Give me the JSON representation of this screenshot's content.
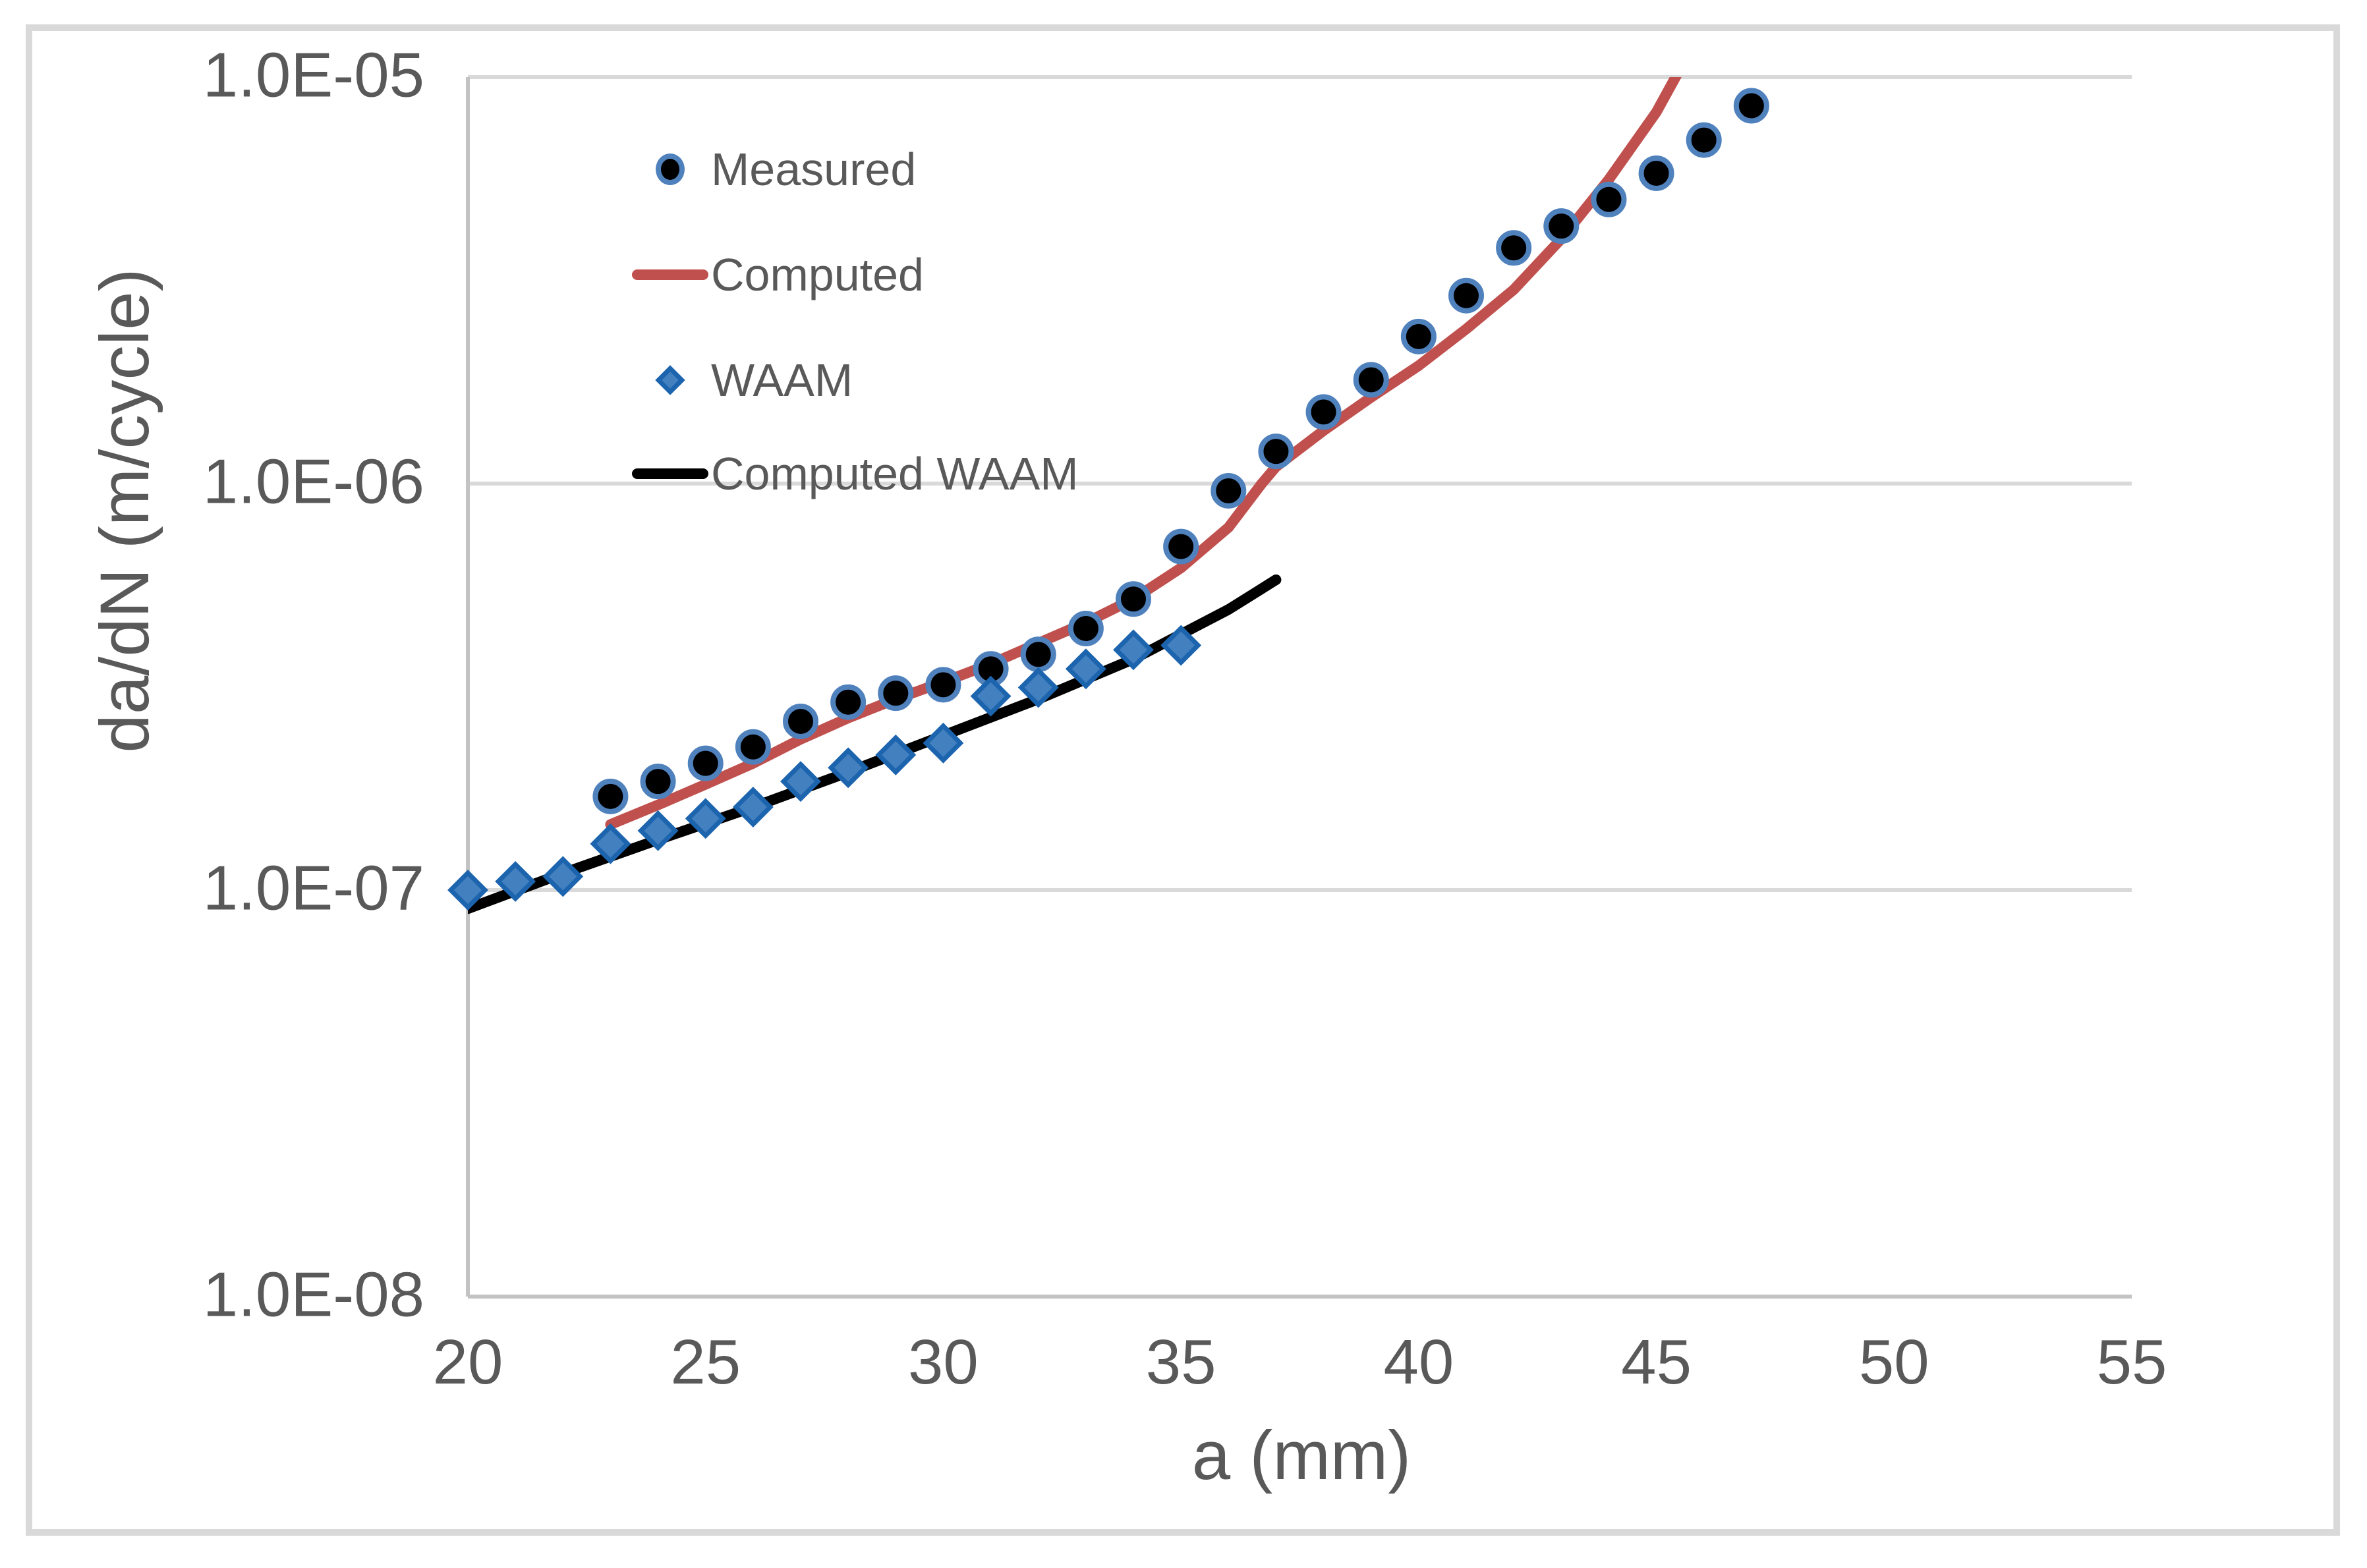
{
  "figure": {
    "x_axis_title": "a (mm)",
    "y_axis_title": "da/dN (m/cycle)"
  },
  "legend": {
    "items": [
      {
        "label": "Measured",
        "marker": "circle-marker"
      },
      {
        "label": "Computed",
        "marker": "red-line-marker"
      },
      {
        "label": "WAAM",
        "marker": "diamond-marker"
      },
      {
        "label": "Computed WAAM",
        "marker": "black-line-marker"
      }
    ]
  },
  "colors": {
    "measured_fill": "#000000",
    "measured_outline": "#4F81BD",
    "computed_line": "#C0504D",
    "waam_fill": "#4380BF",
    "waam_outline": "#1C64AE",
    "computed_waam_line": "#000000",
    "gridline": "#D9D9D9",
    "axis_line": "#C3C3C3",
    "frame_border": "#D9D9D9",
    "text": "#595959"
  },
  "chart_data": {
    "type": "scatter",
    "title": "",
    "xlabel": "a (mm)",
    "ylabel": "da/dN (m/cycle)",
    "x_axis": {
      "scale": "linear",
      "min": 20,
      "max": 55,
      "ticks": [
        {
          "value": 20,
          "label": "20"
        },
        {
          "value": 25,
          "label": "25"
        },
        {
          "value": 30,
          "label": "30"
        },
        {
          "value": 35,
          "label": "35"
        },
        {
          "value": 40,
          "label": "40"
        },
        {
          "value": 45,
          "label": "45"
        },
        {
          "value": 50,
          "label": "50"
        },
        {
          "value": 55,
          "label": "55"
        }
      ]
    },
    "y_axis": {
      "scale": "log",
      "min": 1e-08,
      "max": 1e-05,
      "ticks": [
        {
          "value": 1e-05,
          "label": "1.0E-05",
          "gridline": true
        },
        {
          "value": 1e-06,
          "label": "1.0E-06",
          "gridline": true
        },
        {
          "value": 1e-07,
          "label": "1.0E-07",
          "gridline": true
        },
        {
          "value": 1e-08,
          "label": "1.0E-08",
          "gridline": false
        }
      ]
    },
    "grid": "horizontal gridlines at decades only",
    "legend_position": "inside plot, upper left",
    "series": [
      {
        "name": "Computed",
        "type": "line",
        "color": "#C0504D",
        "points": [
          [
            23,
            1.45e-07
          ],
          [
            24,
            1.62e-07
          ],
          [
            25,
            1.82e-07
          ],
          [
            26,
            2.05e-07
          ],
          [
            27,
            2.35e-07
          ],
          [
            28,
            2.65e-07
          ],
          [
            29,
            2.95e-07
          ],
          [
            30,
            3.25e-07
          ],
          [
            31,
            3.6e-07
          ],
          [
            32,
            4.05e-07
          ],
          [
            33,
            4.55e-07
          ],
          [
            34,
            5.2e-07
          ],
          [
            35,
            6.2e-07
          ],
          [
            36,
            7.8e-07
          ],
          [
            36.7,
            1e-06
          ],
          [
            37,
            1.1e-06
          ],
          [
            38,
            1.35e-06
          ],
          [
            39,
            1.63e-06
          ],
          [
            40,
            1.95e-06
          ],
          [
            41,
            2.4e-06
          ],
          [
            42,
            3e-06
          ],
          [
            43,
            4e-06
          ],
          [
            44,
            5.6e-06
          ],
          [
            45,
            8.2e-06
          ],
          [
            45.6,
            1.1e-05
          ]
        ]
      },
      {
        "name": "Computed WAAM",
        "type": "line",
        "color": "#000000",
        "points": [
          [
            20,
            9e-08
          ],
          [
            22,
            1.1e-07
          ],
          [
            24,
            1.33e-07
          ],
          [
            26,
            1.6e-07
          ],
          [
            28,
            1.95e-07
          ],
          [
            30,
            2.4e-07
          ],
          [
            32,
            2.95e-07
          ],
          [
            34,
            3.7e-07
          ],
          [
            36,
            4.9e-07
          ],
          [
            37,
            5.8e-07
          ]
        ]
      },
      {
        "name": "Measured",
        "type": "scatter",
        "marker": "circle",
        "marker_fill": "#000000",
        "marker_outline": "#4F81BD",
        "points": [
          [
            23,
            1.7e-07
          ],
          [
            24,
            1.85e-07
          ],
          [
            25,
            2.05e-07
          ],
          [
            26,
            2.25e-07
          ],
          [
            27,
            2.6e-07
          ],
          [
            28,
            2.9e-07
          ],
          [
            29,
            3.05e-07
          ],
          [
            30,
            3.2e-07
          ],
          [
            31,
            3.5e-07
          ],
          [
            32,
            3.8e-07
          ],
          [
            33,
            4.4e-07
          ],
          [
            34,
            5.2e-07
          ],
          [
            35,
            7e-07
          ],
          [
            36,
            9.6e-07
          ],
          [
            37,
            1.2e-06
          ],
          [
            38,
            1.5e-06
          ],
          [
            39,
            1.8e-06
          ],
          [
            40,
            2.3e-06
          ],
          [
            41,
            2.9e-06
          ],
          [
            42,
            3.8e-06
          ],
          [
            43,
            4.3e-06
          ],
          [
            44,
            5e-06
          ],
          [
            45,
            5.8e-06
          ],
          [
            46,
            7e-06
          ],
          [
            47,
            8.5e-06
          ]
        ]
      },
      {
        "name": "WAAM",
        "type": "scatter",
        "marker": "diamond",
        "marker_fill": "#4380BF",
        "marker_outline": "#1C64AE",
        "points": [
          [
            20,
            1e-07
          ],
          [
            21,
            1.05e-07
          ],
          [
            22,
            1.08e-07
          ],
          [
            23,
            1.3e-07
          ],
          [
            24,
            1.4e-07
          ],
          [
            25,
            1.5e-07
          ],
          [
            26,
            1.6e-07
          ],
          [
            27,
            1.85e-07
          ],
          [
            28,
            2e-07
          ],
          [
            29,
            2.15e-07
          ],
          [
            30,
            2.3e-07
          ],
          [
            31,
            3e-07
          ],
          [
            32,
            3.15e-07
          ],
          [
            33,
            3.5e-07
          ],
          [
            34,
            3.9e-07
          ],
          [
            35,
            4e-07
          ]
        ]
      }
    ]
  }
}
